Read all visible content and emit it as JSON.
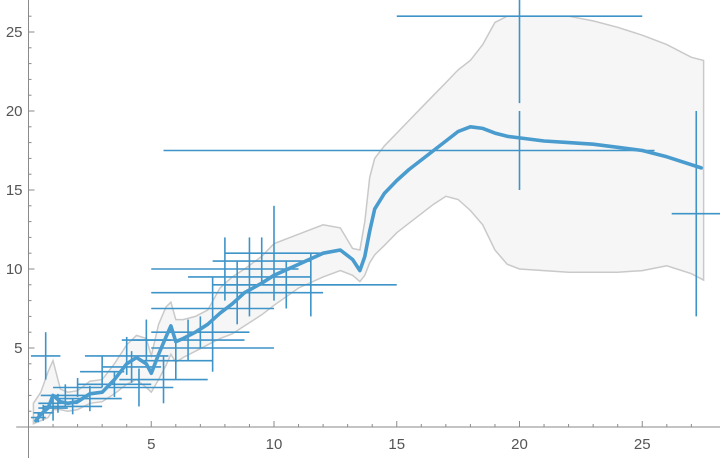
{
  "chart_data": {
    "type": "scatter",
    "title": "",
    "xlabel": "",
    "ylabel": "",
    "xlim": [
      -0.5,
      28
    ],
    "ylim": [
      -0.2,
      27
    ],
    "xticks": [
      5,
      10,
      15,
      20,
      25
    ],
    "yticks": [
      5,
      10,
      15,
      20,
      25
    ],
    "grid": false,
    "colors": {
      "points": "#3e94c8",
      "fit_line": "#4a9ccf",
      "band_fill": "#f6f6f6",
      "band_edge": "#c9c9c9",
      "axis": "#8a8a8a"
    },
    "error_points": [
      {
        "x": 0.4,
        "y": 0.6,
        "xerr": 0.3,
        "yerr": 0.3
      },
      {
        "x": 0.6,
        "y": 0.9,
        "xerr": 0.4,
        "yerr": 0.5
      },
      {
        "x": 0.7,
        "y": 4.5,
        "xerr": 0.6,
        "yerr": 1.5
      },
      {
        "x": 1.0,
        "y": 1.2,
        "xerr": 0.6,
        "yerr": 0.8
      },
      {
        "x": 1.2,
        "y": 1.5,
        "xerr": 0.8,
        "yerr": 0.6
      },
      {
        "x": 1.5,
        "y": 2.0,
        "xerr": 1.0,
        "yerr": 0.7
      },
      {
        "x": 1.8,
        "y": 1.3,
        "xerr": 1.2,
        "yerr": 0.5
      },
      {
        "x": 2.0,
        "y": 2.5,
        "xerr": 1.0,
        "yerr": 0.6
      },
      {
        "x": 2.5,
        "y": 1.8,
        "xerr": 1.3,
        "yerr": 0.8
      },
      {
        "x": 3.0,
        "y": 3.5,
        "xerr": 0.9,
        "yerr": 1.0
      },
      {
        "x": 3.5,
        "y": 2.7,
        "xerr": 1.5,
        "yerr": 0.8
      },
      {
        "x": 4.0,
        "y": 4.5,
        "xerr": 1.7,
        "yerr": 1.2
      },
      {
        "x": 4.2,
        "y": 3.8,
        "xerr": 1.2,
        "yerr": 1.0
      },
      {
        "x": 4.5,
        "y": 2.5,
        "xerr": 1.4,
        "yerr": 1.2
      },
      {
        "x": 4.8,
        "y": 5.5,
        "xerr": 1.0,
        "yerr": 1.3
      },
      {
        "x": 5.5,
        "y": 3.0,
        "xerr": 1.8,
        "yerr": 1.5
      },
      {
        "x": 6.0,
        "y": 4.2,
        "xerr": 1.5,
        "yerr": 1.2
      },
      {
        "x": 6.5,
        "y": 5.5,
        "xerr": 2.3,
        "yerr": 1.3
      },
      {
        "x": 7.0,
        "y": 6.0,
        "xerr": 2.0,
        "yerr": 1.0
      },
      {
        "x": 7.5,
        "y": 5.0,
        "xerr": 2.5,
        "yerr": 1.5
      },
      {
        "x": 7.5,
        "y": 7.5,
        "xerr": 2.5,
        "yerr": 2.0
      },
      {
        "x": 8.0,
        "y": 10.0,
        "xerr": 3.0,
        "yerr": 2.0
      },
      {
        "x": 8.5,
        "y": 8.5,
        "xerr": 3.5,
        "yerr": 2.0
      },
      {
        "x": 9.0,
        "y": 9.5,
        "xerr": 2.5,
        "yerr": 2.5
      },
      {
        "x": 9.5,
        "y": 10.5,
        "xerr": 2.0,
        "yerr": 1.5
      },
      {
        "x": 10.0,
        "y": 11.0,
        "xerr": 2.0,
        "yerr": 3.0
      },
      {
        "x": 10.5,
        "y": 9.0,
        "xerr": 3.0,
        "yerr": 1.5
      },
      {
        "x": 11.5,
        "y": 9.0,
        "xerr": 3.5,
        "yerr": 2.0
      },
      {
        "x": 15.5,
        "y": 17.5,
        "xerr": 10.0,
        "yerr": 0.0
      },
      {
        "x": 20.0,
        "y": 26.0,
        "xerr": 5.0,
        "yerr": 5.5
      },
      {
        "x": 20.0,
        "y": 17.5,
        "xerr": 0.0,
        "yerr": 2.5
      },
      {
        "x": 27.2,
        "y": 13.5,
        "xerr": 1.0,
        "yerr": 6.5
      }
    ],
    "fit_line": {
      "x": [
        0.3,
        0.5,
        0.8,
        1.0,
        1.3,
        1.6,
        2.0,
        2.5,
        3.0,
        3.5,
        4.0,
        4.4,
        4.8,
        5.0,
        5.3,
        5.6,
        5.8,
        6.0,
        6.3,
        6.8,
        7.3,
        7.8,
        8.3,
        8.8,
        9.5,
        10.0,
        11.0,
        12.0,
        12.7,
        13.2,
        13.5,
        13.7,
        13.9,
        14.1,
        14.5,
        15.0,
        15.5,
        16.0,
        16.5,
        17.0,
        17.5,
        18.0,
        18.5,
        19.0,
        19.5,
        20.0,
        21.0,
        22.0,
        23.0,
        24.0,
        25.0,
        26.0,
        27.4
      ],
      "y": [
        0.4,
        0.8,
        1.2,
        2.0,
        1.6,
        1.5,
        1.6,
        2.1,
        2.2,
        3.0,
        4.0,
        4.4,
        4.0,
        3.4,
        4.6,
        5.7,
        6.4,
        5.4,
        5.6,
        6.0,
        6.5,
        7.2,
        7.8,
        8.5,
        9.1,
        9.6,
        10.3,
        11.0,
        11.2,
        10.6,
        9.9,
        10.8,
        12.4,
        13.8,
        14.8,
        15.6,
        16.3,
        16.9,
        17.5,
        18.1,
        18.7,
        19.0,
        18.9,
        18.6,
        18.4,
        18.3,
        18.1,
        18.0,
        17.9,
        17.7,
        17.5,
        17.1,
        16.4
      ]
    },
    "confidence_band": {
      "x": [
        0.2,
        0.5,
        0.8,
        1.0,
        1.3,
        1.6,
        2.0,
        2.5,
        3.0,
        3.5,
        4.0,
        4.4,
        4.8,
        5.0,
        5.3,
        5.6,
        5.8,
        6.0,
        6.3,
        6.8,
        7.3,
        7.8,
        8.3,
        8.8,
        9.5,
        10.0,
        11.0,
        12.0,
        12.7,
        13.2,
        13.5,
        13.7,
        13.9,
        14.1,
        14.5,
        15.0,
        15.5,
        16.0,
        16.5,
        17.0,
        17.5,
        18.0,
        18.5,
        19.0,
        19.5,
        20.0,
        21.0,
        22.0,
        23.0,
        24.0,
        25.0,
        26.0,
        27.0,
        27.5
      ],
      "upper": [
        1.5,
        2.2,
        3.5,
        4.2,
        2.4,
        2.2,
        2.3,
        2.9,
        3.0,
        4.0,
        5.2,
        5.8,
        5.6,
        4.5,
        6.5,
        7.6,
        7.9,
        6.8,
        6.8,
        7.0,
        7.4,
        8.8,
        9.5,
        10.0,
        10.8,
        11.6,
        12.2,
        12.8,
        12.6,
        11.3,
        11.2,
        13.0,
        15.8,
        17.0,
        17.8,
        18.6,
        19.4,
        20.2,
        21.0,
        21.8,
        22.6,
        23.2,
        24.2,
        25.6,
        26.0,
        26.0,
        26.0,
        26.0,
        25.7,
        25.3,
        24.8,
        24.2,
        23.4,
        23.2
      ],
      "lower": [
        0.2,
        0.4,
        0.6,
        1.1,
        1.1,
        1.0,
        1.1,
        1.5,
        1.6,
        2.1,
        2.7,
        3.0,
        2.5,
        2.2,
        3.0,
        3.9,
        4.6,
        4.1,
        4.4,
        4.8,
        5.2,
        5.6,
        5.9,
        6.4,
        7.1,
        7.7,
        8.8,
        9.5,
        9.9,
        9.6,
        9.2,
        9.6,
        10.4,
        10.9,
        11.5,
        12.3,
        12.9,
        13.5,
        14.1,
        14.6,
        14.4,
        13.7,
        12.8,
        11.2,
        10.3,
        10.0,
        9.9,
        9.8,
        9.8,
        9.8,
        9.9,
        10.2,
        9.7,
        9.3
      ]
    }
  }
}
